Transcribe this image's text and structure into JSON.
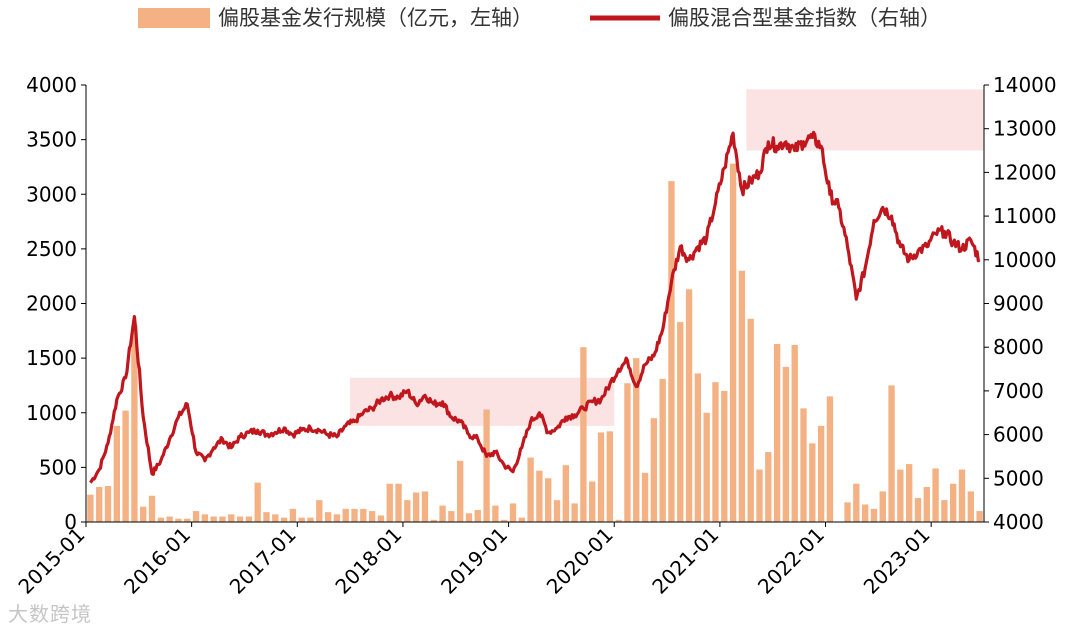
{
  "chart_data": {
    "type": "bar+line",
    "legend": {
      "position": "top",
      "bar_label": "偏股基金发行规模（亿元，左轴）",
      "line_label": "偏股混合型基金指数（右轴）"
    },
    "colors": {
      "bar": "#f4b183",
      "line": "#c0161e",
      "highlight": "#fbe3e3",
      "axis": "#000000"
    },
    "y_left": {
      "range": [
        0,
        4000
      ],
      "ticks": [
        "0",
        "500",
        "1000",
        "1500",
        "2000",
        "2500",
        "3000",
        "3500",
        "4000"
      ]
    },
    "y_right": {
      "range": [
        4000,
        14000
      ],
      "ticks": [
        "4000",
        "5000",
        "6000",
        "7000",
        "8000",
        "9000",
        "10000",
        "11000",
        "12000",
        "13000",
        "14000"
      ]
    },
    "x_labels": [
      "2015-01",
      "2016-01",
      "2017-01",
      "2018-01",
      "2019-01",
      "2020-01",
      "2021-01",
      "2022-01",
      "2023-01"
    ],
    "highlight_regions": [
      {
        "from": "2017-07",
        "to": "2019-12",
        "y_low": 6200,
        "y_high": 7300
      },
      {
        "from": "2021-04",
        "to": "2023-06",
        "y_low": 12500,
        "y_high": 13900
      }
    ],
    "bars": {
      "name": "偏股基金发行规模（亿元，左轴）",
      "values": [
        250,
        320,
        330,
        880,
        1020,
        1800,
        140,
        240,
        40,
        50,
        30,
        30,
        100,
        70,
        50,
        50,
        70,
        50,
        50,
        360,
        90,
        70,
        40,
        120,
        40,
        40,
        200,
        90,
        70,
        120,
        120,
        120,
        100,
        60,
        350,
        350,
        200,
        270,
        280,
        20,
        150,
        100,
        560,
        80,
        110,
        1030,
        150,
        20,
        170,
        40,
        590,
        470,
        400,
        200,
        520,
        170,
        1600,
        370,
        820,
        830,
        20,
        1270,
        1500,
        450,
        950,
        1310,
        3120,
        1830,
        2130,
        1360,
        1000,
        1280,
        1200,
        3280,
        2300,
        1860,
        480,
        640,
        1630,
        1420,
        1620,
        1040,
        720,
        880,
        1150,
        5,
        180,
        350,
        160,
        120,
        280,
        1250,
        480,
        530,
        220,
        320,
        490,
        200,
        350,
        480,
        280,
        100
      ]
    },
    "line": {
      "name": "偏股混合型基金指数（右轴）",
      "points": [
        [
          "2015-01",
          4900
        ],
        [
          "2015-02",
          5200
        ],
        [
          "2015-03",
          5800
        ],
        [
          "2015-04",
          6800
        ],
        [
          "2015-05",
          7300
        ],
        [
          "2015-06",
          8700
        ],
        [
          "2015-07",
          6400
        ],
        [
          "2015-08",
          5100
        ],
        [
          "2015-09",
          5400
        ],
        [
          "2015-10",
          5900
        ],
        [
          "2015-11",
          6400
        ],
        [
          "2015-12",
          6700
        ],
        [
          "2016-01",
          5600
        ],
        [
          "2016-02",
          5400
        ],
        [
          "2016-03",
          5700
        ],
        [
          "2016-04",
          5900
        ],
        [
          "2016-05",
          5700
        ],
        [
          "2016-06",
          5950
        ],
        [
          "2016-07",
          6050
        ],
        [
          "2016-08",
          6100
        ],
        [
          "2016-09",
          6000
        ],
        [
          "2016-10",
          6050
        ],
        [
          "2016-11",
          6150
        ],
        [
          "2016-12",
          6000
        ],
        [
          "2017-01",
          6100
        ],
        [
          "2017-02",
          6150
        ],
        [
          "2017-03",
          6100
        ],
        [
          "2017-04",
          6000
        ],
        [
          "2017-05",
          5950
        ],
        [
          "2017-06",
          6200
        ],
        [
          "2017-07",
          6300
        ],
        [
          "2017-08",
          6500
        ],
        [
          "2017-09",
          6600
        ],
        [
          "2017-10",
          6800
        ],
        [
          "2017-11",
          6900
        ],
        [
          "2017-12",
          6850
        ],
        [
          "2018-01",
          7000
        ],
        [
          "2018-02",
          6700
        ],
        [
          "2018-03",
          6900
        ],
        [
          "2018-04",
          6700
        ],
        [
          "2018-05",
          6750
        ],
        [
          "2018-06",
          6400
        ],
        [
          "2018-07",
          6300
        ],
        [
          "2018-08",
          6000
        ],
        [
          "2018-09",
          5900
        ],
        [
          "2018-10",
          5500
        ],
        [
          "2018-11",
          5600
        ],
        [
          "2018-12",
          5300
        ],
        [
          "2019-01",
          5150
        ],
        [
          "2019-02",
          5700
        ],
        [
          "2019-03",
          6300
        ],
        [
          "2019-04",
          6500
        ],
        [
          "2019-05",
          6050
        ],
        [
          "2019-06",
          6150
        ],
        [
          "2019-07",
          6400
        ],
        [
          "2019-08",
          6450
        ],
        [
          "2019-09",
          6600
        ],
        [
          "2019-10",
          6750
        ],
        [
          "2019-11",
          6800
        ],
        [
          "2019-12",
          7150
        ],
        [
          "2020-01",
          7500
        ],
        [
          "2020-02",
          7700
        ],
        [
          "2020-03",
          7100
        ],
        [
          "2020-04",
          7600
        ],
        [
          "2020-05",
          7800
        ],
        [
          "2020-06",
          8400
        ],
        [
          "2020-07",
          9500
        ],
        [
          "2020-08",
          10300
        ],
        [
          "2020-09",
          10000
        ],
        [
          "2020-10",
          10300
        ],
        [
          "2020-11",
          10500
        ],
        [
          "2020-12",
          11300
        ],
        [
          "2021-01",
          12100
        ],
        [
          "2021-02",
          12900
        ],
        [
          "2021-03",
          11600
        ],
        [
          "2021-04",
          11800
        ],
        [
          "2021-05",
          12000
        ],
        [
          "2021-06",
          12700
        ],
        [
          "2021-07",
          12600
        ],
        [
          "2021-08",
          12700
        ],
        [
          "2021-09",
          12500
        ],
        [
          "2021-10",
          12700
        ],
        [
          "2021-11",
          12800
        ],
        [
          "2021-12",
          12600
        ],
        [
          "2022-01",
          11500
        ],
        [
          "2022-02",
          11200
        ],
        [
          "2022-03",
          10300
        ],
        [
          "2022-04",
          9100
        ],
        [
          "2022-05",
          9800
        ],
        [
          "2022-06",
          10900
        ],
        [
          "2022-07",
          11200
        ],
        [
          "2022-08",
          11000
        ],
        [
          "2022-09",
          10300
        ],
        [
          "2022-10",
          10000
        ],
        [
          "2022-11",
          10200
        ],
        [
          "2022-12",
          10300
        ],
        [
          "2023-01",
          10600
        ],
        [
          "2023-02",
          10650
        ],
        [
          "2023-03",
          10400
        ],
        [
          "2023-04",
          10250
        ],
        [
          "2023-05",
          10450
        ],
        [
          "2023-06",
          10000
        ]
      ]
    }
  },
  "watermark": {
    "text": "大数跨境"
  }
}
